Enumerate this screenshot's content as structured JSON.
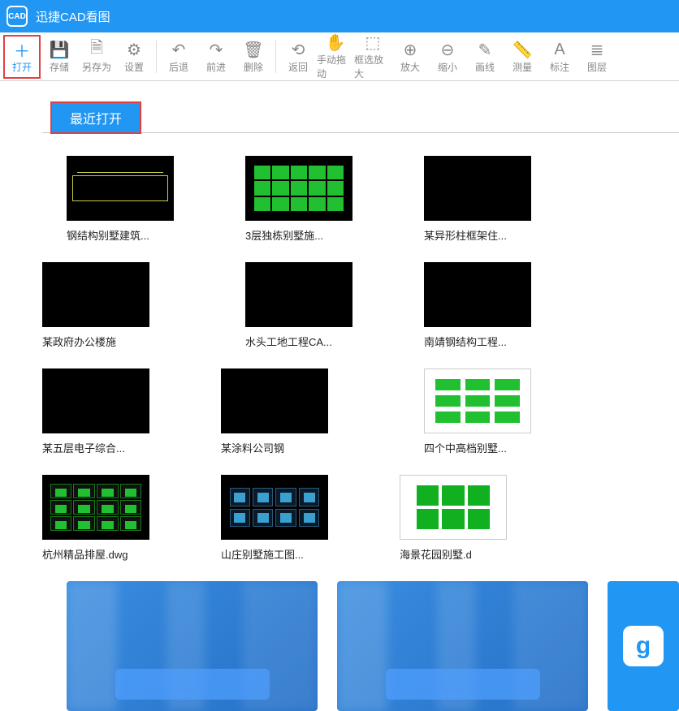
{
  "app": {
    "title": "迅捷CAD看图",
    "icon_label": "CAD"
  },
  "toolbar": [
    {
      "name": "open",
      "label": "打开",
      "glyph": "＋",
      "active": true
    },
    {
      "name": "save",
      "label": "存储",
      "glyph": "💾"
    },
    {
      "name": "saveas",
      "label": "另存为",
      "glyph": "🗎"
    },
    {
      "name": "settings",
      "label": "设置",
      "glyph": "⚙"
    },
    {
      "name": "sep"
    },
    {
      "name": "back",
      "label": "后退",
      "glyph": "↶"
    },
    {
      "name": "forward",
      "label": "前进",
      "glyph": "↷"
    },
    {
      "name": "delete",
      "label": "删除",
      "glyph": "🗑"
    },
    {
      "name": "sep"
    },
    {
      "name": "return",
      "label": "返回",
      "glyph": "⟲"
    },
    {
      "name": "pan",
      "label": "手动拖动",
      "glyph": "✋"
    },
    {
      "name": "zoombox",
      "label": "框选放大",
      "glyph": "⬚"
    },
    {
      "name": "zoomin",
      "label": "放大",
      "glyph": "⊕"
    },
    {
      "name": "zoomout",
      "label": "缩小",
      "glyph": "⊖"
    },
    {
      "name": "line",
      "label": "画线",
      "glyph": "✎"
    },
    {
      "name": "measure",
      "label": "测量",
      "glyph": "📏"
    },
    {
      "name": "annotate",
      "label": "标注",
      "glyph": "A"
    },
    {
      "name": "layers",
      "label": "图层",
      "glyph": "≣"
    }
  ],
  "section_title": "最近打开",
  "files": [
    {
      "label": "钢结构别墅建筑...",
      "thumb": "art1"
    },
    {
      "label": "3层独栋别墅施...",
      "thumb": "art2"
    },
    {
      "label": "某异形柱框架住...",
      "thumb": "black"
    },
    {
      "label": "某政府办公楼施",
      "thumb": "black"
    },
    {
      "label": "水头工地工程CA...",
      "thumb": "black"
    },
    {
      "label": "南靖钢结构工程...",
      "thumb": "black"
    },
    {
      "label": "某五层电子综合...",
      "thumb": "black"
    },
    {
      "label": "某涂料公司钢",
      "thumb": "black"
    },
    {
      "label": "四个中高档别墅...",
      "thumb": "art3",
      "white": true
    },
    {
      "label": "杭州精品排屋.dwg",
      "thumb": "art4"
    },
    {
      "label": "山庄别墅施工图...",
      "thumb": "art5"
    },
    {
      "label": "海景花园别墅.d",
      "thumb": "art6",
      "white": true
    }
  ],
  "colors": {
    "primary": "#2196f3",
    "highlight_border": "#e04040",
    "text": "#222222",
    "muted": "#888888"
  }
}
